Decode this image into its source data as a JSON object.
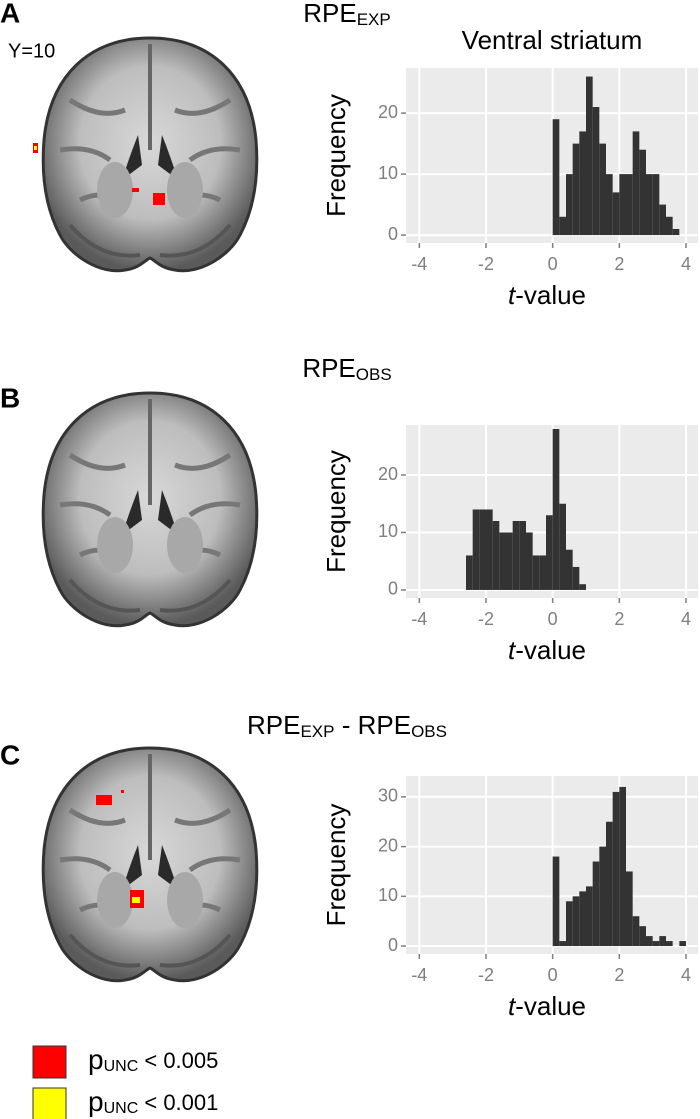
{
  "panel_labels": [
    "A",
    "B",
    "C"
  ],
  "slice_label": "Y=10",
  "chart_data": [
    {
      "type": "histogram",
      "title": {
        "main": "RPE",
        "sub": "EXP"
      },
      "subtitle": "Ventral striatum",
      "x_label": {
        "italic": "t",
        "text": "-value"
      },
      "y_label": "Frequency",
      "color": "#333333",
      "grid": true,
      "bins": [
        0,
        0.2,
        0.4,
        0.6,
        0.8,
        1.0,
        1.2,
        1.4,
        1.6,
        1.8,
        2.0,
        2.2,
        2.4,
        2.6,
        2.8,
        3.0,
        3.2,
        3.4,
        3.6,
        3.8
      ],
      "values": [
        19,
        3,
        10,
        15,
        17,
        26,
        21,
        15,
        10,
        7,
        10,
        10,
        17,
        14,
        10,
        10,
        5,
        3,
        1
      ],
      "xlim": [
        -4.4,
        4.36
      ],
      "xticks": [
        -4,
        -2,
        0,
        2,
        4
      ],
      "ylim": [
        -1.3,
        27.4
      ],
      "yticks": [
        0,
        10,
        20
      ]
    },
    {
      "type": "histogram",
      "title": {
        "main": "RPE",
        "sub": "OBS"
      },
      "x_label": {
        "italic": "t",
        "text": "-value"
      },
      "y_label": "Frequency",
      "color": "#333333",
      "grid": true,
      "bins": [
        -2.6,
        -2.4,
        -2.2,
        -2.0,
        -1.8,
        -1.6,
        -1.4,
        -1.2,
        -1.0,
        -0.8,
        -0.6,
        -0.4,
        -0.2,
        0,
        0.2,
        0.4,
        0.6,
        0.8,
        1.0
      ],
      "values": [
        6,
        14,
        14,
        14,
        12,
        10,
        10,
        12,
        12,
        10,
        6,
        6,
        13,
        28,
        15,
        7,
        4,
        1
      ],
      "xlim": [
        -4.4,
        4.36
      ],
      "xticks": [
        -4,
        -2,
        0,
        2,
        4
      ],
      "ylim": [
        -1.4,
        28.7
      ],
      "yticks": [
        0,
        10,
        20
      ]
    },
    {
      "type": "histogram",
      "title": {
        "main": "RPE",
        "sub": "EXP",
        "main2": " - RPE",
        "sub2": "OBS"
      },
      "x_label": {
        "italic": "t",
        "text": "-value"
      },
      "y_label": "Frequency",
      "color": "#333333",
      "grid": true,
      "bins": [
        0,
        0.2,
        0.4,
        0.6,
        0.8,
        1.0,
        1.2,
        1.4,
        1.6,
        1.8,
        2.0,
        2.2,
        2.4,
        2.6,
        2.8,
        3.0,
        3.2,
        3.4,
        3.6,
        3.8,
        4.0
      ],
      "values": [
        18,
        1,
        9,
        10,
        11,
        12,
        17,
        20,
        25,
        31,
        32,
        15,
        6,
        4,
        2,
        1,
        2,
        1,
        0,
        1
      ],
      "xlim": [
        -4.4,
        4.36
      ],
      "xticks": [
        -4,
        -2,
        0,
        2,
        4
      ],
      "ylim": [
        -1.6,
        34.2
      ],
      "yticks": [
        0,
        10,
        20,
        30
      ]
    }
  ],
  "legend": [
    {
      "color": "#ff0000",
      "p": "p",
      "sub": "UNC",
      "text": " < 0.005"
    },
    {
      "color": "#ffff00",
      "p": "p",
      "sub": "UNC",
      "text": " < 0.001"
    }
  ]
}
